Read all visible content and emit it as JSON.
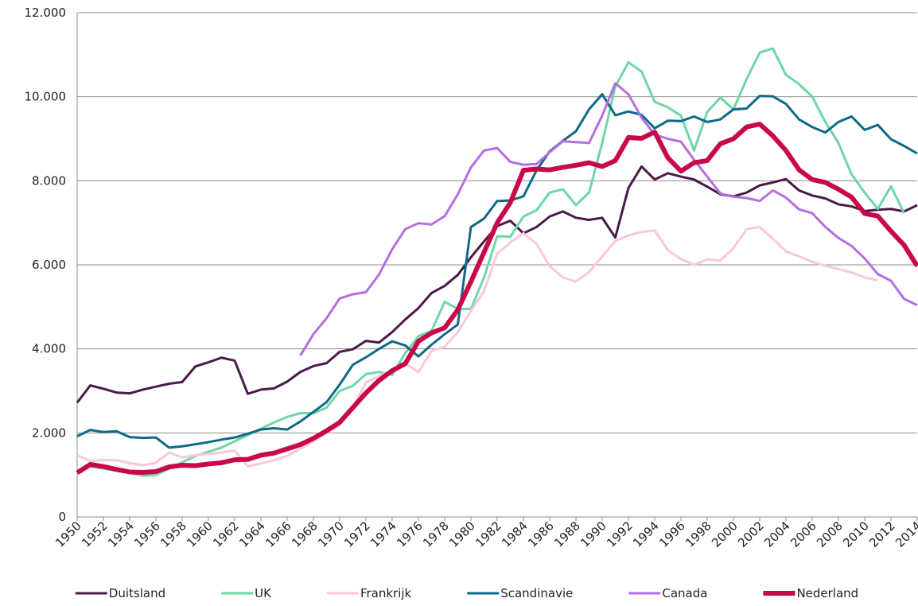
{
  "chart_data": {
    "type": "line",
    "x": [
      1950,
      1951,
      1952,
      1953,
      1954,
      1955,
      1956,
      1957,
      1958,
      1959,
      1960,
      1961,
      1962,
      1963,
      1964,
      1965,
      1966,
      1967,
      1968,
      1969,
      1970,
      1971,
      1972,
      1973,
      1974,
      1975,
      1976,
      1977,
      1978,
      1979,
      1980,
      1981,
      1982,
      1983,
      1984,
      1985,
      1986,
      1987,
      1988,
      1989,
      1990,
      1991,
      1992,
      1993,
      1994,
      1995,
      1996,
      1997,
      1998,
      1999,
      2000,
      2001,
      2002,
      2003,
      2004,
      2005,
      2006,
      2007,
      2008,
      2009,
      2010,
      2011,
      2012,
      2013,
      2014
    ],
    "xlim": [
      1950,
      2014
    ],
    "xticks": [
      1950,
      1952,
      1954,
      1956,
      1958,
      1960,
      1962,
      1964,
      1966,
      1968,
      1970,
      1972,
      1974,
      1976,
      1978,
      1980,
      1982,
      1984,
      1986,
      1988,
      1990,
      1992,
      1994,
      1996,
      1998,
      2000,
      2002,
      2004,
      2006,
      2008,
      2010,
      2012,
      2014
    ],
    "ylim": [
      0,
      12000
    ],
    "yticks": [
      0,
      {
        "value": 2000,
        "label": "2.000"
      },
      {
        "value": 4000,
        "label": "4.000"
      },
      {
        "value": 6000,
        "label": "6.000"
      },
      {
        "value": 8000,
        "label": "8.000"
      },
      {
        "value": 10000,
        "label": "10.000"
      },
      {
        "value": 12000,
        "label": "12.000"
      }
    ],
    "grid": true,
    "legend": "bottom",
    "series": [
      {
        "name": "Duitsland",
        "color": "#4b1a4a",
        "width": 3,
        "values": [
          2720,
          3130,
          3050,
          2960,
          2940,
          3030,
          3100,
          3170,
          3210,
          3580,
          3680,
          3790,
          3720,
          2930,
          3030,
          3060,
          3220,
          3450,
          3590,
          3660,
          3930,
          3990,
          4190,
          4150,
          4400,
          4700,
          4970,
          5330,
          5500,
          5760,
          6180,
          6560,
          6920,
          7050,
          6750,
          6900,
          7150,
          7270,
          7120,
          7070,
          7120,
          6650,
          7830,
          8340,
          8030,
          8180,
          8100,
          8030,
          7860,
          7680,
          7630,
          7720,
          7890,
          7960,
          8040,
          7770,
          7650,
          7580,
          7440,
          7390,
          7280,
          7310,
          7330,
          7270,
          7420
        ]
      },
      {
        "name": "UK",
        "color": "#6fd6a5",
        "width": 3,
        "values": [
          1100,
          1200,
          1150,
          1100,
          1050,
          980,
          1000,
          1150,
          1300,
          1450,
          1550,
          1650,
          1800,
          1950,
          2100,
          2250,
          2380,
          2470,
          2470,
          2600,
          3000,
          3120,
          3400,
          3450,
          3380,
          3900,
          4300,
          4430,
          5120,
          4950,
          4950,
          5700,
          6680,
          6670,
          7150,
          7300,
          7720,
          7800,
          7420,
          7720,
          8900,
          10250,
          10820,
          10600,
          9880,
          9750,
          9550,
          8720,
          9640,
          9980,
          9700,
          10420,
          11050,
          11150,
          10520,
          10300,
          10000,
          9400,
          8900,
          8150,
          7720,
          7330,
          7870,
          7230,
          null
        ]
      },
      {
        "name": "Frankrijk",
        "color": "#fbc8d8",
        "width": 3,
        "values": [
          1470,
          1330,
          1350,
          1350,
          1280,
          1230,
          1290,
          1530,
          1420,
          1470,
          1500,
          1530,
          1580,
          1200,
          1270,
          1350,
          1450,
          1620,
          1800,
          2000,
          2200,
          2600,
          3200,
          3350,
          3500,
          3650,
          3450,
          3950,
          4050,
          4400,
          4900,
          5380,
          6270,
          6530,
          6750,
          6500,
          5970,
          5700,
          5600,
          5830,
          6200,
          6570,
          6700,
          6780,
          6820,
          6350,
          6140,
          6000,
          6130,
          6100,
          6400,
          6850,
          6900,
          6620,
          6320,
          6200,
          6070,
          5980,
          5900,
          5820,
          5700,
          5630,
          null,
          null,
          null
        ]
      },
      {
        "name": "Scandinavie",
        "color": "#0e6a86",
        "width": 3,
        "values": [
          1920,
          2070,
          2020,
          2040,
          1900,
          1880,
          1890,
          1650,
          1680,
          1730,
          1780,
          1840,
          1890,
          1980,
          2080,
          2110,
          2080,
          2270,
          2500,
          2730,
          3150,
          3620,
          3800,
          4000,
          4180,
          4080,
          3820,
          4100,
          4350,
          4580,
          6900,
          7100,
          7520,
          7530,
          7630,
          8250,
          8700,
          8950,
          9180,
          9700,
          10060,
          9560,
          9650,
          9570,
          9250,
          9430,
          9420,
          9530,
          9400,
          9460,
          9700,
          9720,
          10020,
          10010,
          9830,
          9460,
          9280,
          9150,
          9400,
          9530,
          9210,
          9330,
          8990,
          8830,
          8650
        ]
      },
      {
        "name": "Canada",
        "color": "#b56ee0",
        "width": 3,
        "values": [
          null,
          null,
          null,
          null,
          null,
          null,
          null,
          null,
          null,
          null,
          null,
          null,
          null,
          null,
          null,
          null,
          null,
          3840,
          4350,
          4730,
          5200,
          5300,
          5350,
          5770,
          6370,
          6850,
          6990,
          6960,
          7160,
          7680,
          8320,
          8720,
          8780,
          8450,
          8380,
          8400,
          8680,
          8940,
          8920,
          8900,
          9550,
          10320,
          10060,
          9500,
          9100,
          9000,
          8930,
          8500,
          8100,
          7700,
          7620,
          7590,
          7520,
          7770,
          7600,
          7320,
          7230,
          6900,
          6640,
          6450,
          6150,
          5780,
          5620,
          5190,
          5040
        ]
      },
      {
        "name": "Nederland",
        "color": "#c8084a",
        "width": 6,
        "values": [
          1050,
          1250,
          1200,
          1130,
          1070,
          1060,
          1080,
          1190,
          1230,
          1220,
          1260,
          1290,
          1360,
          1370,
          1470,
          1520,
          1620,
          1720,
          1870,
          2050,
          2250,
          2600,
          2950,
          3250,
          3480,
          3650,
          4180,
          4380,
          4500,
          4930,
          5600,
          6300,
          7000,
          7480,
          8250,
          8280,
          8260,
          8320,
          8370,
          8430,
          8340,
          8480,
          9030,
          9010,
          9160,
          8550,
          8230,
          8430,
          8480,
          8880,
          9000,
          9280,
          9350,
          9070,
          8720,
          8260,
          8030,
          7960,
          7800,
          7610,
          7220,
          7160,
          6800,
          6470,
          5970
        ]
      }
    ]
  }
}
